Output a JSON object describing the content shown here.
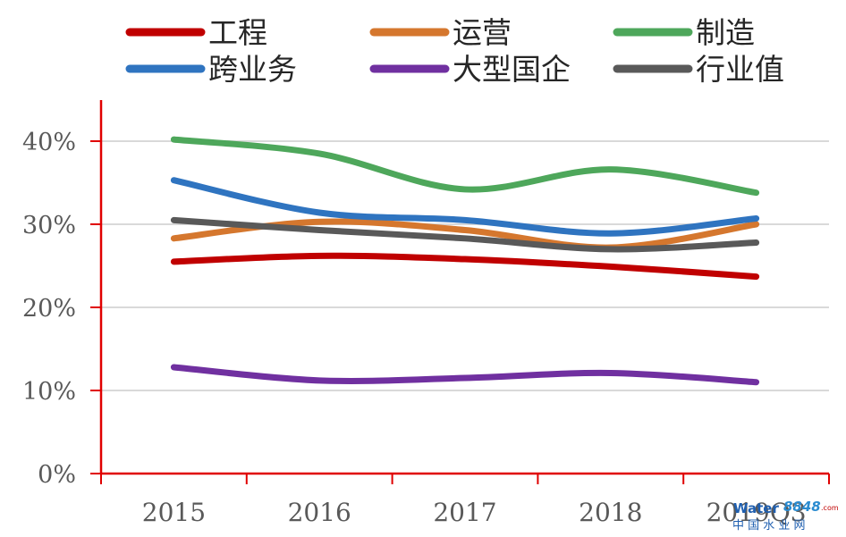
{
  "chart_data": {
    "type": "line",
    "categories": [
      "2015",
      "2016",
      "2017",
      "2018",
      "2019Q3"
    ],
    "y_ticks": [
      "0%",
      "10%",
      "20%",
      "30%",
      "40%"
    ],
    "ylim": [
      0,
      0.45
    ],
    "grid": true,
    "legend_position": "top",
    "series": [
      {
        "name": "工程",
        "color": "#c00000",
        "values": [
          0.255,
          0.262,
          0.258,
          0.249,
          0.237
        ]
      },
      {
        "name": "运营",
        "color": "#d5772e",
        "values": [
          0.283,
          0.303,
          0.293,
          0.272,
          0.3
        ]
      },
      {
        "name": "制造",
        "color": "#4ea75b",
        "values": [
          0.402,
          0.385,
          0.342,
          0.366,
          0.338
        ]
      },
      {
        "name": "跨业务",
        "color": "#2f74c0",
        "values": [
          0.353,
          0.314,
          0.305,
          0.289,
          0.307
        ]
      },
      {
        "name": "大型国企",
        "color": "#7030a0",
        "values": [
          0.128,
          0.112,
          0.115,
          0.121,
          0.11
        ]
      },
      {
        "name": "行业值",
        "color": "#595959",
        "values": [
          0.305,
          0.293,
          0.283,
          0.27,
          0.278
        ]
      }
    ],
    "axis_color": "#e00000",
    "grid_color": "#d9d9d9"
  },
  "watermark": {
    "logo_text": "Water",
    "number": "8848",
    "domain": ".com",
    "chinese": "中 国 水 业 网"
  }
}
